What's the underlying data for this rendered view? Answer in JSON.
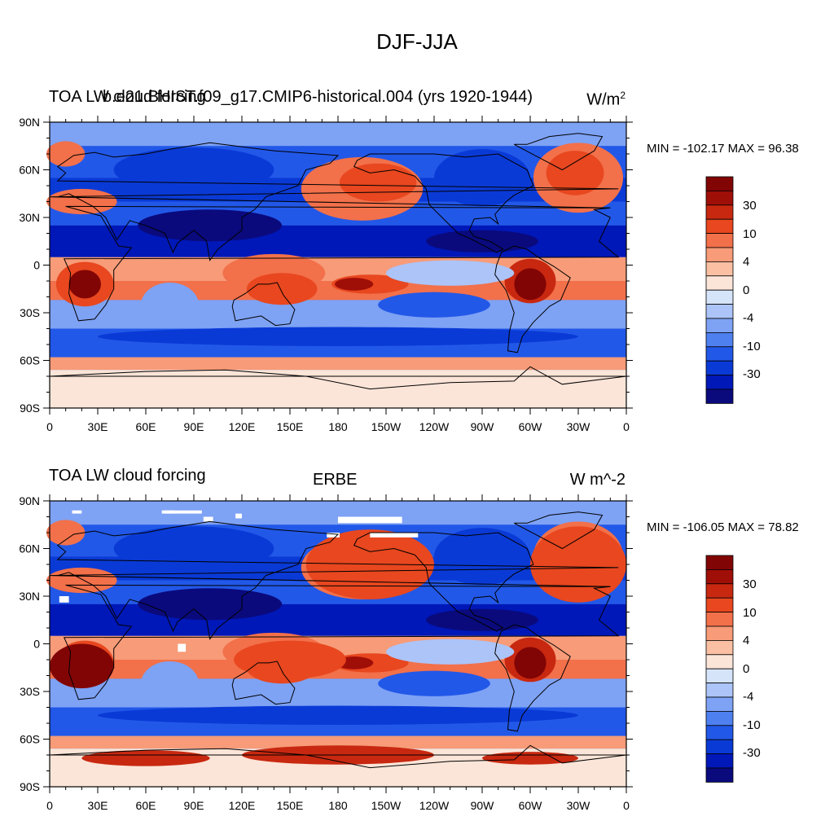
{
  "main_title": "DJF-JJA",
  "colors": {
    "levels": [
      "#0a0a7d",
      "#0018b8",
      "#0a3ad6",
      "#2258e8",
      "#4f80f0",
      "#7ea2f4",
      "#acc4f8",
      "#d6e4fa",
      "#fbe5d8",
      "#fbc0a4",
      "#f79b78",
      "#f2704a",
      "#e8471f",
      "#c82810",
      "#a00e08",
      "#820505"
    ]
  },
  "axes": {
    "lat_labels": [
      "90N",
      "60N",
      "30N",
      "0",
      "30S",
      "60S",
      "90S"
    ],
    "lon_labels": [
      "0",
      "30E",
      "60E",
      "90E",
      "120E",
      "150E",
      "180",
      "150W",
      "120W",
      "90W",
      "60W",
      "30W",
      "0"
    ]
  },
  "colorbar_labels": [
    "30",
    "10",
    "4",
    "0",
    "-4",
    "-10",
    "-30"
  ],
  "panels": [
    {
      "id": "model",
      "title_left": "TOA LW cloud forcing",
      "title_center": "b.e21.BHIST.f09_g17.CMIP6-historical.004 (yrs 1920-1944)",
      "units_base": "W/m",
      "units_sup": "2",
      "stats": "MIN = -102.17 MAX =  96.38"
    },
    {
      "id": "obs",
      "title_left": "TOA LW cloud forcing",
      "title_center": "ERBE",
      "units": "W m^-2",
      "stats": "MIN = -106.05 MAX =  78.82"
    }
  ]
}
